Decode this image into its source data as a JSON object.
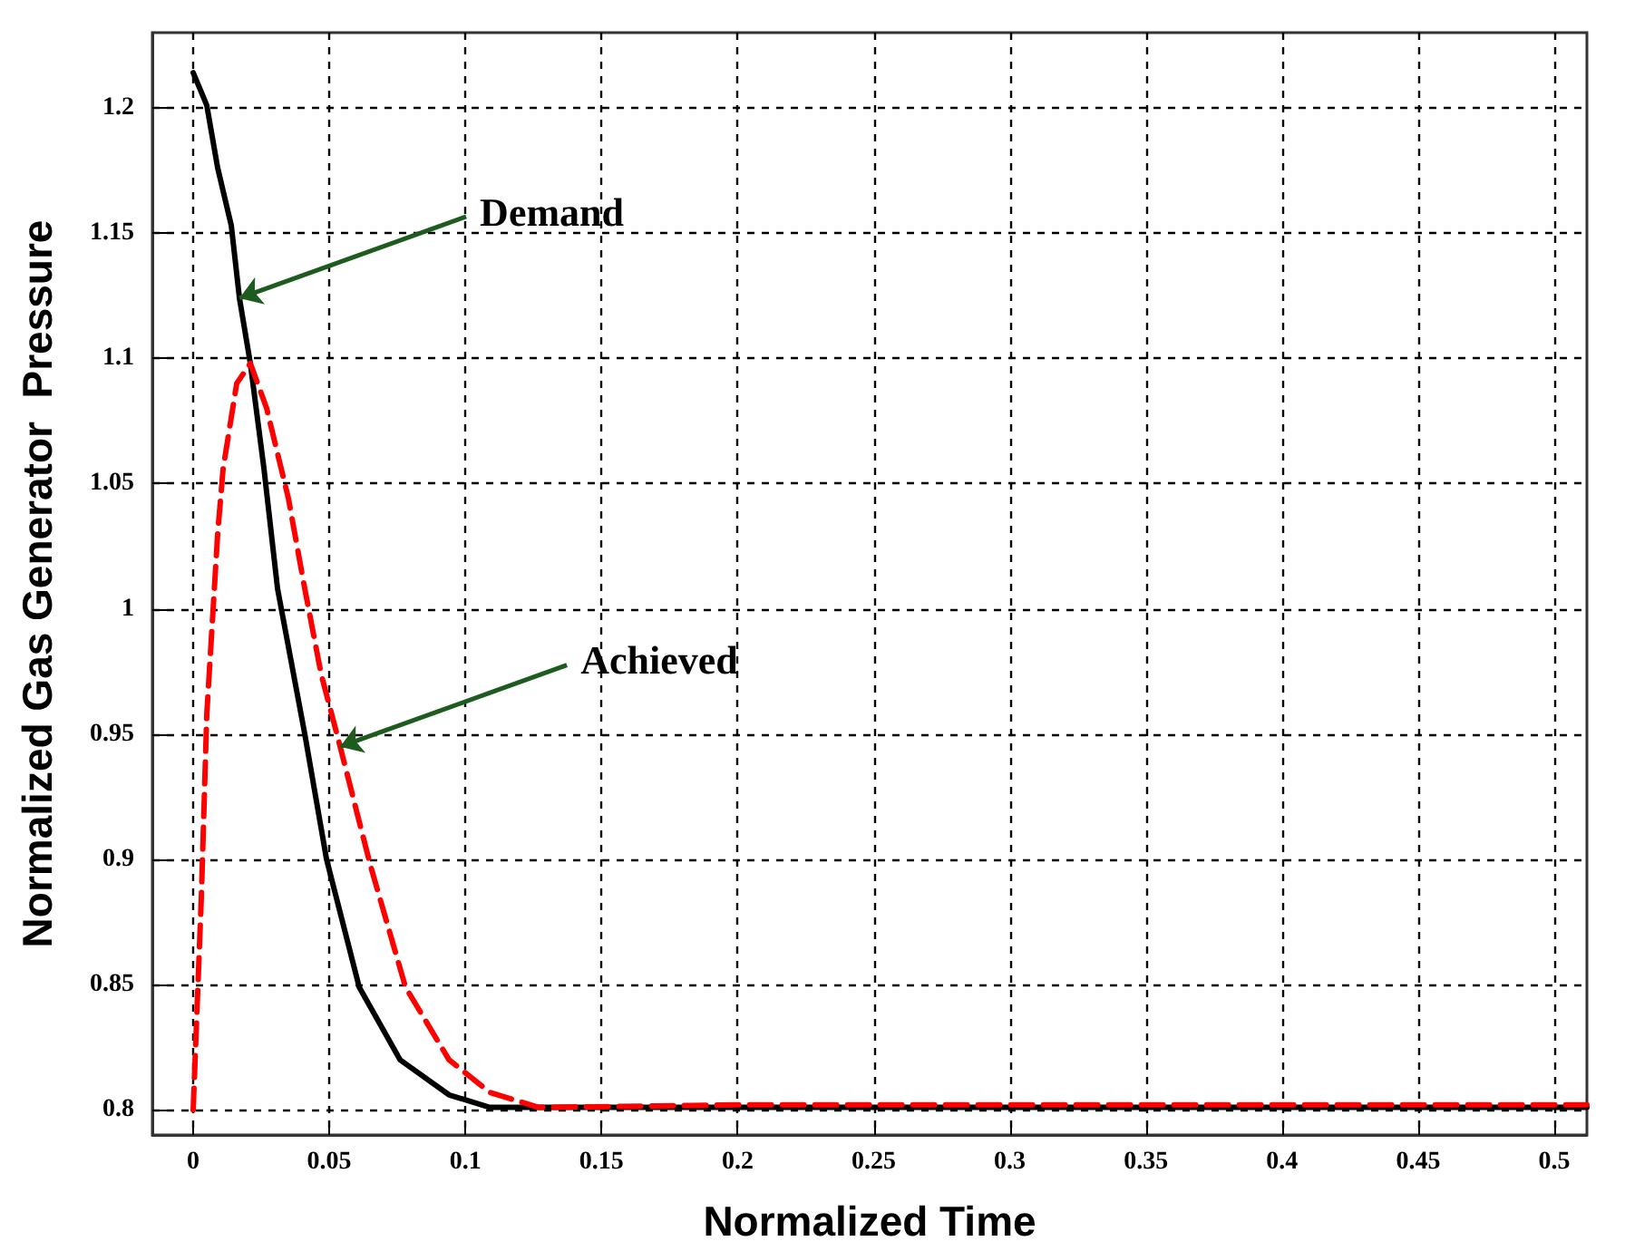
{
  "chart_data": {
    "type": "line",
    "xlabel": "Normalized Time",
    "ylabel": "Normalized Gas Generator  Pressure",
    "xlim": [
      -0.015,
      0.512
    ],
    "ylim": [
      0.79,
      1.23
    ],
    "xticks": [
      0,
      0.05,
      0.1,
      0.15,
      0.2,
      0.25,
      0.3,
      0.35,
      0.4,
      0.45,
      0.5
    ],
    "yticks": [
      0.8,
      0.85,
      0.9,
      0.95,
      1,
      1.05,
      1.1,
      1.15,
      1.2
    ],
    "grid": true,
    "marker": "none",
    "series": [
      {
        "color": "#000000",
        "line_style": "solid",
        "x": [
          0,
          0.005,
          0.009,
          0.014,
          0.017,
          0.021,
          0.026,
          0.031,
          0.041,
          0.049,
          0.061,
          0.076,
          0.094,
          0.109,
          0.13,
          0.2,
          0.3,
          0.4,
          0.512
        ],
        "values": [
          1.214,
          1.201,
          1.176,
          1.153,
          1.124,
          1.098,
          1.056,
          1.008,
          0.95,
          0.9,
          0.849,
          0.82,
          0.806,
          0.801,
          0.801,
          0.801,
          0.801,
          0.801,
          0.801
        ]
      },
      {
        "color": "#ff0000",
        "line_style": "dashed",
        "x": [
          0,
          0.003,
          0.005,
          0.009,
          0.011,
          0.016,
          0.021,
          0.027,
          0.035,
          0.041,
          0.047,
          0.054,
          0.065,
          0.078,
          0.094,
          0.109,
          0.127,
          0.2,
          0.3,
          0.4,
          0.512
        ],
        "values": [
          0.8,
          0.885,
          0.958,
          1.03,
          1.056,
          1.09,
          1.098,
          1.08,
          1.044,
          1.008,
          0.974,
          0.945,
          0.898,
          0.849,
          0.82,
          0.807,
          0.801,
          0.802,
          0.802,
          0.802,
          0.802
        ]
      }
    ],
    "annotations": [
      {
        "text": "Demand",
        "x": 0.017,
        "y": 1.124
      },
      {
        "text": "Achieved",
        "x": 0.054,
        "y": 0.945
      }
    ]
  }
}
